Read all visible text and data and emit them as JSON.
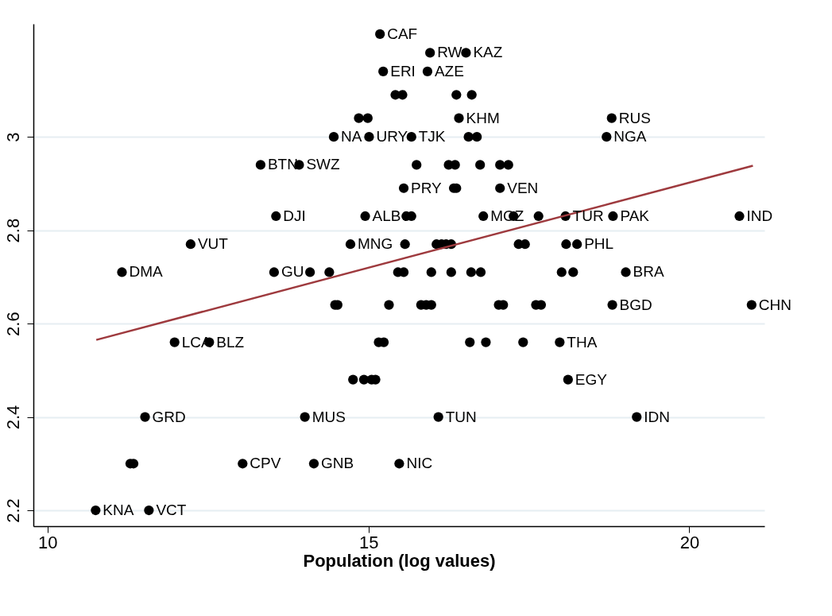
{
  "chart_data": {
    "type": "scatter",
    "xlabel": "Population (log values)",
    "xlim": [
      9.78,
      21.17
    ],
    "xticks": [
      10,
      15,
      20
    ],
    "ylim": [
      2.166,
      3.242
    ],
    "yticks": [
      2.2,
      2.4,
      2.6,
      2.8,
      3
    ],
    "grid": "y",
    "marker": "circle",
    "series": [
      {
        "color": "#000000",
        "x": [
          15.18,
          15.96,
          16.52,
          15.23,
          15.92,
          15.42,
          15.53,
          16.37,
          16.61,
          14.85,
          14.99,
          16.41,
          18.79,
          14.46,
          15.01,
          15.67,
          16.56,
          16.69,
          18.71,
          13.32,
          13.92,
          15.75,
          16.25,
          16.35,
          16.74,
          17.05,
          17.18,
          15.55,
          16.33,
          16.37,
          17.05,
          13.56,
          14.95,
          15.59,
          15.67,
          16.79,
          17.26,
          17.65,
          18.07,
          18.81,
          20.78,
          12.23,
          14.72,
          15.57,
          16.06,
          16.14,
          16.21,
          16.29,
          17.34,
          17.44,
          18.08,
          18.25,
          11.16,
          13.53,
          14.09,
          14.39,
          15.46,
          15.55,
          15.98,
          16.29,
          16.6,
          16.75,
          18.01,
          18.19,
          19.01,
          14.48,
          14.52,
          15.32,
          15.82,
          15.9,
          15.98,
          17.03,
          17.1,
          17.61,
          17.69,
          18.8,
          20.97,
          11.98,
          12.52,
          15.16,
          15.24,
          16.58,
          16.83,
          17.41,
          17.98,
          14.76,
          14.93,
          15.05,
          15.11,
          18.11,
          11.52,
          14.01,
          16.09,
          19.18,
          11.29,
          11.34,
          13.04,
          14.15,
          15.48,
          10.75,
          11.58
        ],
        "values": [
          3.22,
          3.18,
          3.18,
          3.14,
          3.14,
          3.09,
          3.09,
          3.09,
          3.09,
          3.04,
          3.04,
          3.04,
          3.04,
          3.0,
          3.0,
          3.0,
          3.0,
          3.0,
          3.0,
          2.94,
          2.94,
          2.94,
          2.94,
          2.94,
          2.94,
          2.94,
          2.94,
          2.89,
          2.89,
          2.89,
          2.89,
          2.83,
          2.83,
          2.83,
          2.83,
          2.83,
          2.83,
          2.83,
          2.83,
          2.83,
          2.83,
          2.77,
          2.77,
          2.77,
          2.77,
          2.77,
          2.77,
          2.77,
          2.77,
          2.77,
          2.77,
          2.77,
          2.71,
          2.71,
          2.71,
          2.71,
          2.71,
          2.71,
          2.71,
          2.71,
          2.71,
          2.71,
          2.71,
          2.71,
          2.71,
          2.64,
          2.64,
          2.64,
          2.64,
          2.64,
          2.64,
          2.64,
          2.64,
          2.64,
          2.64,
          2.64,
          2.64,
          2.56,
          2.56,
          2.56,
          2.56,
          2.56,
          2.56,
          2.56,
          2.56,
          2.48,
          2.48,
          2.48,
          2.48,
          2.48,
          2.4,
          2.4,
          2.4,
          2.4,
          2.3,
          2.3,
          2.3,
          2.3,
          2.3,
          2.2,
          2.2
        ]
      },
      {
        "type": "line",
        "marker": "none",
        "color": "#9e3a3e",
        "x": [
          10.76,
          20.99
        ],
        "values": [
          2.565,
          2.938
        ]
      }
    ],
    "annotations": [
      {
        "text": "CAF",
        "x": 15.18,
        "y": 3.22
      },
      {
        "text": "RW",
        "x": 15.96,
        "y": 3.18
      },
      {
        "text": "KAZ",
        "x": 16.52,
        "y": 3.18
      },
      {
        "text": "ERI",
        "x": 15.23,
        "y": 3.14
      },
      {
        "text": "AZE",
        "x": 15.92,
        "y": 3.14
      },
      {
        "text": "KHM",
        "x": 16.41,
        "y": 3.04
      },
      {
        "text": "RUS",
        "x": 18.79,
        "y": 3.04
      },
      {
        "text": "NA",
        "x": 14.46,
        "y": 3.0
      },
      {
        "text": "URY",
        "x": 15.01,
        "y": 3.0
      },
      {
        "text": "TJK",
        "x": 15.67,
        "y": 3.0
      },
      {
        "text": "NGA",
        "x": 18.71,
        "y": 3.0
      },
      {
        "text": "BTN",
        "x": 13.32,
        "y": 2.94
      },
      {
        "text": "SWZ",
        "x": 13.92,
        "y": 2.94
      },
      {
        "text": "PRY",
        "x": 15.55,
        "y": 2.89
      },
      {
        "text": "VEN",
        "x": 17.05,
        "y": 2.89
      },
      {
        "text": "DJI",
        "x": 13.56,
        "y": 2.83
      },
      {
        "text": "ALB",
        "x": 14.95,
        "y": 2.83
      },
      {
        "text": "MOZ",
        "x": 16.79,
        "y": 2.83
      },
      {
        "text": "TUR",
        "x": 18.07,
        "y": 2.83
      },
      {
        "text": "PAK",
        "x": 18.81,
        "y": 2.83
      },
      {
        "text": "IND",
        "x": 20.78,
        "y": 2.83
      },
      {
        "text": "VUT",
        "x": 12.23,
        "y": 2.77
      },
      {
        "text": "MNG",
        "x": 14.72,
        "y": 2.77
      },
      {
        "text": "PHL",
        "x": 18.25,
        "y": 2.77
      },
      {
        "text": "DMA",
        "x": 11.16,
        "y": 2.71
      },
      {
        "text": "GU",
        "x": 13.53,
        "y": 2.71
      },
      {
        "text": "BRA",
        "x": 19.01,
        "y": 2.71
      },
      {
        "text": "BGD",
        "x": 18.8,
        "y": 2.64
      },
      {
        "text": "CHN",
        "x": 20.97,
        "y": 2.64
      },
      {
        "text": "LCA",
        "x": 11.98,
        "y": 2.56
      },
      {
        "text": "BLZ",
        "x": 12.52,
        "y": 2.56
      },
      {
        "text": "THA",
        "x": 17.98,
        "y": 2.56
      },
      {
        "text": "EGY",
        "x": 18.11,
        "y": 2.48
      },
      {
        "text": "GRD",
        "x": 11.52,
        "y": 2.4
      },
      {
        "text": "MUS",
        "x": 14.01,
        "y": 2.4
      },
      {
        "text": "TUN",
        "x": 16.09,
        "y": 2.4
      },
      {
        "text": "IDN",
        "x": 19.18,
        "y": 2.4
      },
      {
        "text": "CPV",
        "x": 13.04,
        "y": 2.3
      },
      {
        "text": "GNB",
        "x": 14.15,
        "y": 2.3
      },
      {
        "text": "NIC",
        "x": 15.48,
        "y": 2.3
      },
      {
        "text": "KNA",
        "x": 10.75,
        "y": 2.2
      },
      {
        "text": "VCT",
        "x": 11.58,
        "y": 2.2
      }
    ]
  }
}
